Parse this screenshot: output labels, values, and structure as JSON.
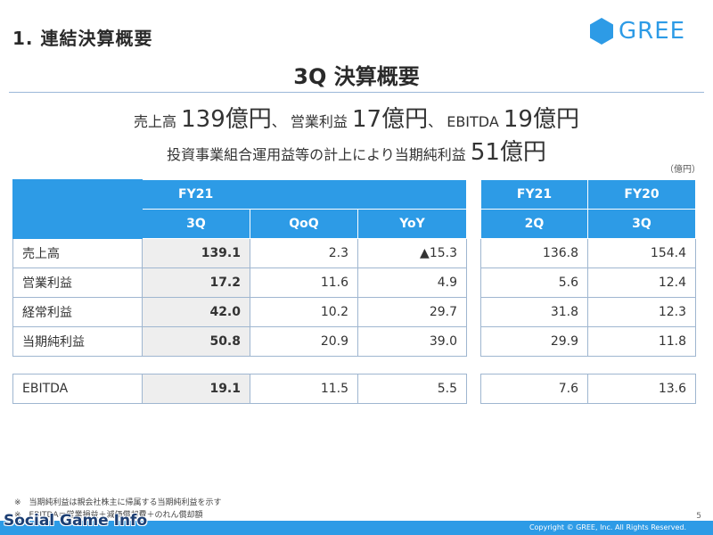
{
  "header": {
    "section_title": "1. 連結決算概要",
    "logo_text": "GREE",
    "slide_title": "3Q 決算概要"
  },
  "summary": {
    "line1": {
      "label1": "売上高",
      "value1": "139億円",
      "sep1": "、",
      "label2": "営業利益",
      "value2": "17億円",
      "sep2": "、",
      "label3": "EBITDA",
      "value3": "19億円"
    },
    "line2": {
      "text": "投資事業組合運用益等の計上により当期純利益",
      "value": "51億円"
    }
  },
  "unit_note": "（億円）",
  "left_table": {
    "header": {
      "period": "FY21",
      "col1": "3Q",
      "col2": "QoQ",
      "col3": "YoY"
    },
    "rows": [
      {
        "label": "売上高",
        "v": "139.1",
        "qoq": "2.3",
        "yoy": "▲15.3"
      },
      {
        "label": "営業利益",
        "v": "17.2",
        "qoq": "11.6",
        "yoy": "4.9"
      },
      {
        "label": "経常利益",
        "v": "42.0",
        "qoq": "10.2",
        "yoy": "29.7"
      },
      {
        "label": "当期純利益",
        "v": "50.8",
        "qoq": "20.9",
        "yoy": "39.0"
      }
    ],
    "ebitda": {
      "label": "EBITDA",
      "v": "19.1",
      "qoq": "11.5",
      "yoy": "5.5"
    }
  },
  "right_table": {
    "header": {
      "col1_period": "FY21",
      "col1_q": "2Q",
      "col2_period": "FY20",
      "col2_q": "3Q"
    },
    "rows": [
      {
        "a": "136.8",
        "b": "154.4"
      },
      {
        "a": "5.6",
        "b": "12.4"
      },
      {
        "a": "31.8",
        "b": "12.3"
      },
      {
        "a": "29.9",
        "b": "11.8"
      }
    ],
    "ebitda": {
      "a": "7.6",
      "b": "13.6"
    }
  },
  "footnotes": [
    "※　当期純利益は親会社株主に帰属する当期純利益を示す",
    "※　EBITDA＝営業損益＋減価償却費＋のれん償却額"
  ],
  "page_number": "5",
  "copyright": "Copyright © GREE, Inc. All Rights Reserved.",
  "watermark": "Social Game Info",
  "colors": {
    "accent": "#2d9be6",
    "highlight_cell": "#eeeeee",
    "border": "#9fb6d0"
  }
}
